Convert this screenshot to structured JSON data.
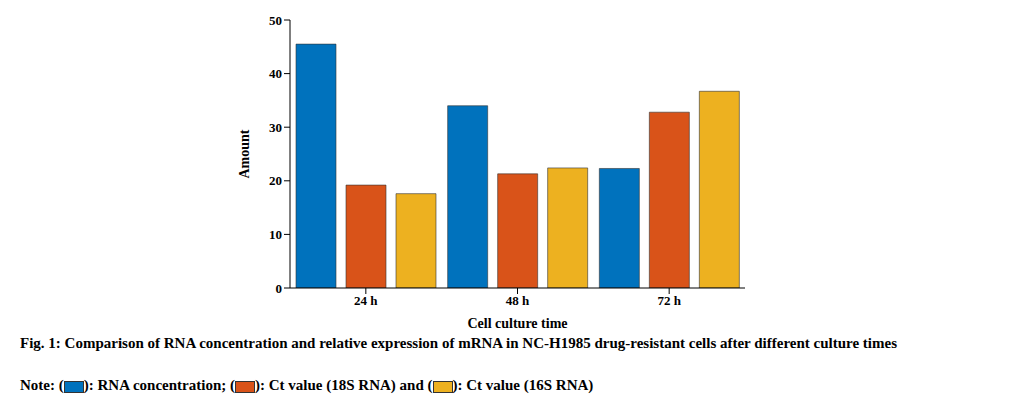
{
  "chart_data": {
    "type": "bar",
    "title": "Fig. 1: Comparison of RNA concentration and relative expression of mRNA in NC-H1985 drug-resistant cells after different culture times",
    "categories": [
      "24 h",
      "48 h",
      "72 h"
    ],
    "series": [
      {
        "name": "RNA concentration",
        "color": "#0072bd",
        "values": [
          45.5,
          34.0,
          22.3
        ]
      },
      {
        "name": "Ct value (18S RNA)",
        "color": "#d95319",
        "values": [
          19.2,
          21.3,
          32.8
        ]
      },
      {
        "name": "Ct value (16S RNA)",
        "color": "#edb120",
        "values": [
          17.6,
          22.4,
          36.7
        ]
      }
    ],
    "x_label": "Cell culture time",
    "y_label": "Amount",
    "ylim": [
      0,
      50
    ],
    "yticks": [
      0,
      10,
      20,
      30,
      40,
      50
    ],
    "grid": false,
    "legend_prefix": "Note:",
    "legend_wrap": [
      "(",
      ")"
    ],
    "legend_joiners": [
      "; ",
      " and ",
      ""
    ]
  }
}
